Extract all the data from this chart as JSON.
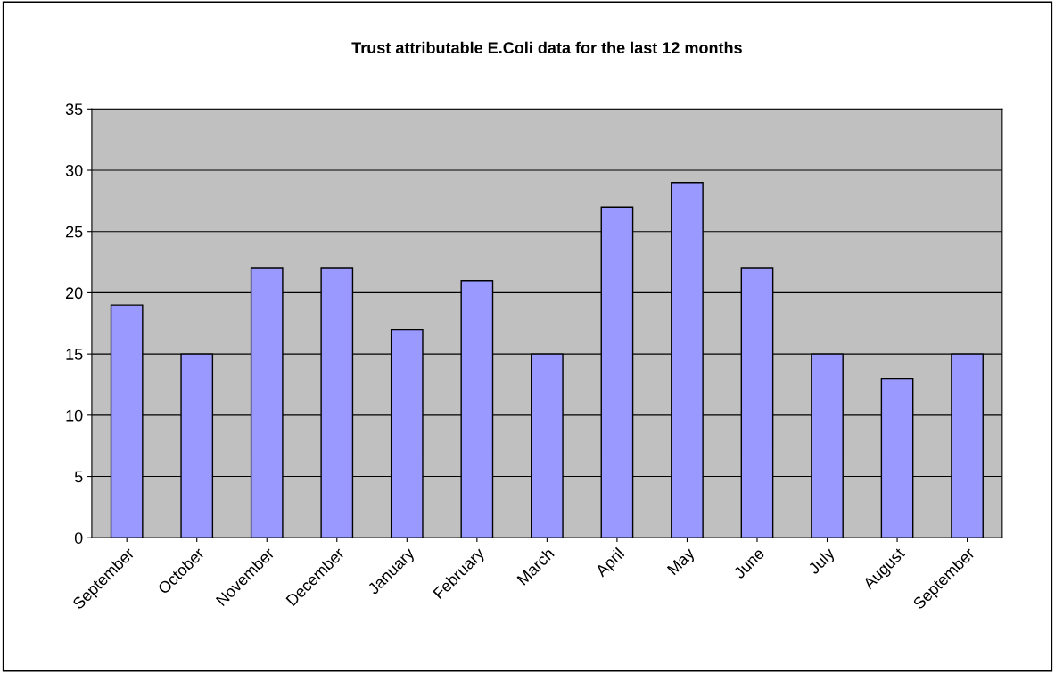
{
  "chart_data": {
    "type": "bar",
    "title": "Trust attributable E.Coli data for the last 12 months",
    "categories": [
      "September",
      "October",
      "November",
      "December",
      "January",
      "February",
      "March",
      "April",
      "May",
      "June",
      "July",
      "August",
      "September"
    ],
    "values": [
      19,
      15,
      22,
      22,
      17,
      21,
      15,
      27,
      29,
      22,
      15,
      13,
      15
    ],
    "color": "#9999ff",
    "ylim": [
      0,
      35
    ],
    "yticks": [
      0,
      5,
      10,
      15,
      20,
      25,
      30,
      35
    ],
    "grid": "y",
    "legend": false
  }
}
